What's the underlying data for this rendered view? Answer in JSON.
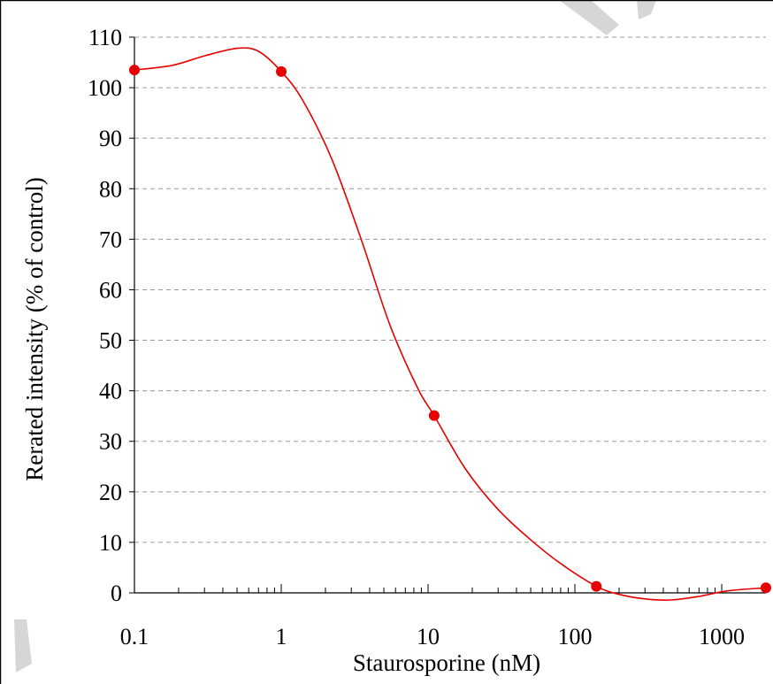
{
  "chart_data": {
    "type": "line",
    "title": "",
    "xlabel": "Staurosporine (nM)",
    "ylabel": "Rerated intensity (% of control)",
    "x_scale": "log",
    "xlim": [
      0.1,
      2000
    ],
    "ylim": [
      0,
      110
    ],
    "x_tick_labels": [
      "0.1",
      "1",
      "10",
      "100",
      "1000"
    ],
    "x_ticks": [
      0.1,
      1,
      10,
      100,
      1000
    ],
    "y_tick_labels": [
      "0",
      "10",
      "20",
      "30",
      "40",
      "50",
      "60",
      "70",
      "80",
      "90",
      "100",
      "110"
    ],
    "y_ticks": [
      0,
      10,
      20,
      30,
      40,
      50,
      60,
      70,
      80,
      90,
      100,
      110
    ],
    "grid": "horizontal dashed",
    "series": [
      {
        "points": {
          "x": [
            0.1,
            1,
            11,
            140,
            2000
          ],
          "y": [
            103.5,
            103.2,
            35.1,
            1.3,
            1.0
          ]
        },
        "curve": {
          "x": [
            0.1,
            0.18,
            0.3,
            0.5,
            0.7,
            1,
            1.4,
            2.2,
            3.5,
            5.5,
            8.5,
            11,
            18,
            30,
            50,
            80,
            140,
            200,
            300,
            450,
            700,
            1100,
            2000
          ],
          "y": [
            103.5,
            104.4,
            106.3,
            107.8,
            107.2,
            103.2,
            97.5,
            86.0,
            70.0,
            53.0,
            40.5,
            35.1,
            24.5,
            16.5,
            10.5,
            5.8,
            1.3,
            -0.3,
            -1.2,
            -1.4,
            -0.7,
            0.4,
            1.0
          ]
        },
        "color": "#e60000"
      }
    ]
  }
}
